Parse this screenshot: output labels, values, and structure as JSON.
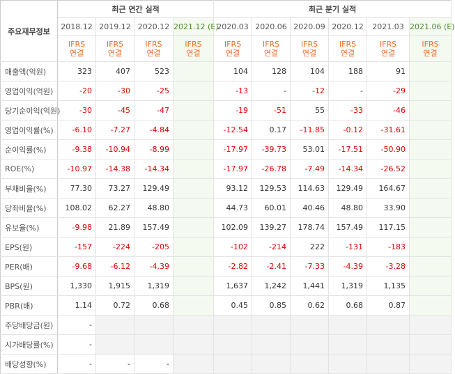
{
  "header": {
    "label": "주요재무정보",
    "annual_title": "최근 연간 실적",
    "quarter_title": "최근 분기 실적",
    "periods": [
      "2018.12",
      "2019.12",
      "2020.12",
      "2021.12 (E)",
      "2020.03",
      "2020.06",
      "2020.09",
      "2020.12",
      "2021.03",
      "2021.06 (E)"
    ],
    "accounting": [
      {
        "standard": "IFRS",
        "scope": "연결"
      },
      {
        "standard": "IFRS",
        "scope": "연결"
      },
      {
        "standard": "IFRS",
        "scope": "연결"
      },
      {
        "standard": "IFRS",
        "scope": "연결"
      },
      {
        "standard": "IFRS",
        "scope": "연결"
      },
      {
        "standard": "IFRS",
        "scope": "연결"
      },
      {
        "standard": "IFRS",
        "scope": "연결"
      },
      {
        "standard": "IFRS",
        "scope": "연결"
      },
      {
        "standard": "IFRS",
        "scope": "연결"
      },
      {
        "standard": "IFRS",
        "scope": "연결"
      }
    ]
  },
  "table": {
    "rows": [
      {
        "label": "매출액(억원)",
        "values": [
          "323",
          "407",
          "523",
          null,
          "104",
          "128",
          "104",
          "188",
          "91",
          null
        ]
      },
      {
        "label": "영업이익(억원)",
        "values": [
          "-20",
          "-30",
          "-25",
          null,
          "-13",
          "-",
          "-12",
          "-",
          "-29",
          null
        ]
      },
      {
        "label": "당기순이익(억원)",
        "values": [
          "-30",
          "-45",
          "-47",
          null,
          "-19",
          "-51",
          "55",
          "-33",
          "-46",
          null
        ]
      },
      {
        "label": "영업이익률(%)",
        "values": [
          "-6.10",
          "-7.27",
          "-4.84",
          null,
          "-12.54",
          "0.17",
          "-11.85",
          "-0.12",
          "-31.61",
          null
        ]
      },
      {
        "label": "순이익률(%)",
        "values": [
          "-9.38",
          "-10.94",
          "-8.99",
          null,
          "-17.97",
          "-39.73",
          "53.01",
          "-17.51",
          "-50.90",
          null
        ]
      },
      {
        "label": "ROE(%)",
        "values": [
          "-10.97",
          "-14.38",
          "-14.34",
          null,
          "-17.97",
          "-26.78",
          "-7.49",
          "-14.34",
          "-26.52",
          null
        ]
      },
      {
        "label": "부채비율(%)",
        "values": [
          "77.30",
          "73.27",
          "129.49",
          null,
          "93.12",
          "129.53",
          "114.63",
          "129.49",
          "164.67",
          null
        ]
      },
      {
        "label": "당좌비율(%)",
        "values": [
          "108.02",
          "62.27",
          "48.80",
          null,
          "44.73",
          "60.01",
          "40.46",
          "48.80",
          "33.90",
          null
        ]
      },
      {
        "label": "유보율(%)",
        "values": [
          "-9.98",
          "21.89",
          "157.49",
          null,
          "102.09",
          "139.27",
          "178.74",
          "157.49",
          "117.15",
          null
        ]
      },
      {
        "label": "EPS(원)",
        "values": [
          "-157",
          "-224",
          "-205",
          null,
          "-102",
          "-214",
          "222",
          "-131",
          "-183",
          null
        ]
      },
      {
        "label": "PER(배)",
        "values": [
          "-9.68",
          "-6.12",
          "-4.39",
          null,
          "-2.82",
          "-2.41",
          "-7.33",
          "-4.39",
          "-3.28",
          null
        ]
      },
      {
        "label": "BPS(원)",
        "values": [
          "1,330",
          "1,915",
          "1,319",
          null,
          "1,637",
          "1,242",
          "1,441",
          "1,319",
          "1,135",
          null
        ]
      },
      {
        "label": "PBR(배)",
        "values": [
          "1.14",
          "0.72",
          "0.68",
          null,
          "0.45",
          "0.85",
          "0.62",
          "0.68",
          "0.87",
          null
        ]
      },
      {
        "label": "주당배당금(원)",
        "values": [
          "-",
          null,
          null,
          null,
          null,
          null,
          null,
          null,
          null,
          null
        ]
      },
      {
        "label": "시가배당률(%)",
        "values": [
          "-",
          null,
          null,
          null,
          null,
          null,
          null,
          null,
          null,
          null
        ]
      },
      {
        "label": "배당성향(%)",
        "values": [
          "-",
          "-",
          "-",
          null,
          null,
          null,
          null,
          null,
          null,
          null
        ]
      }
    ]
  }
}
